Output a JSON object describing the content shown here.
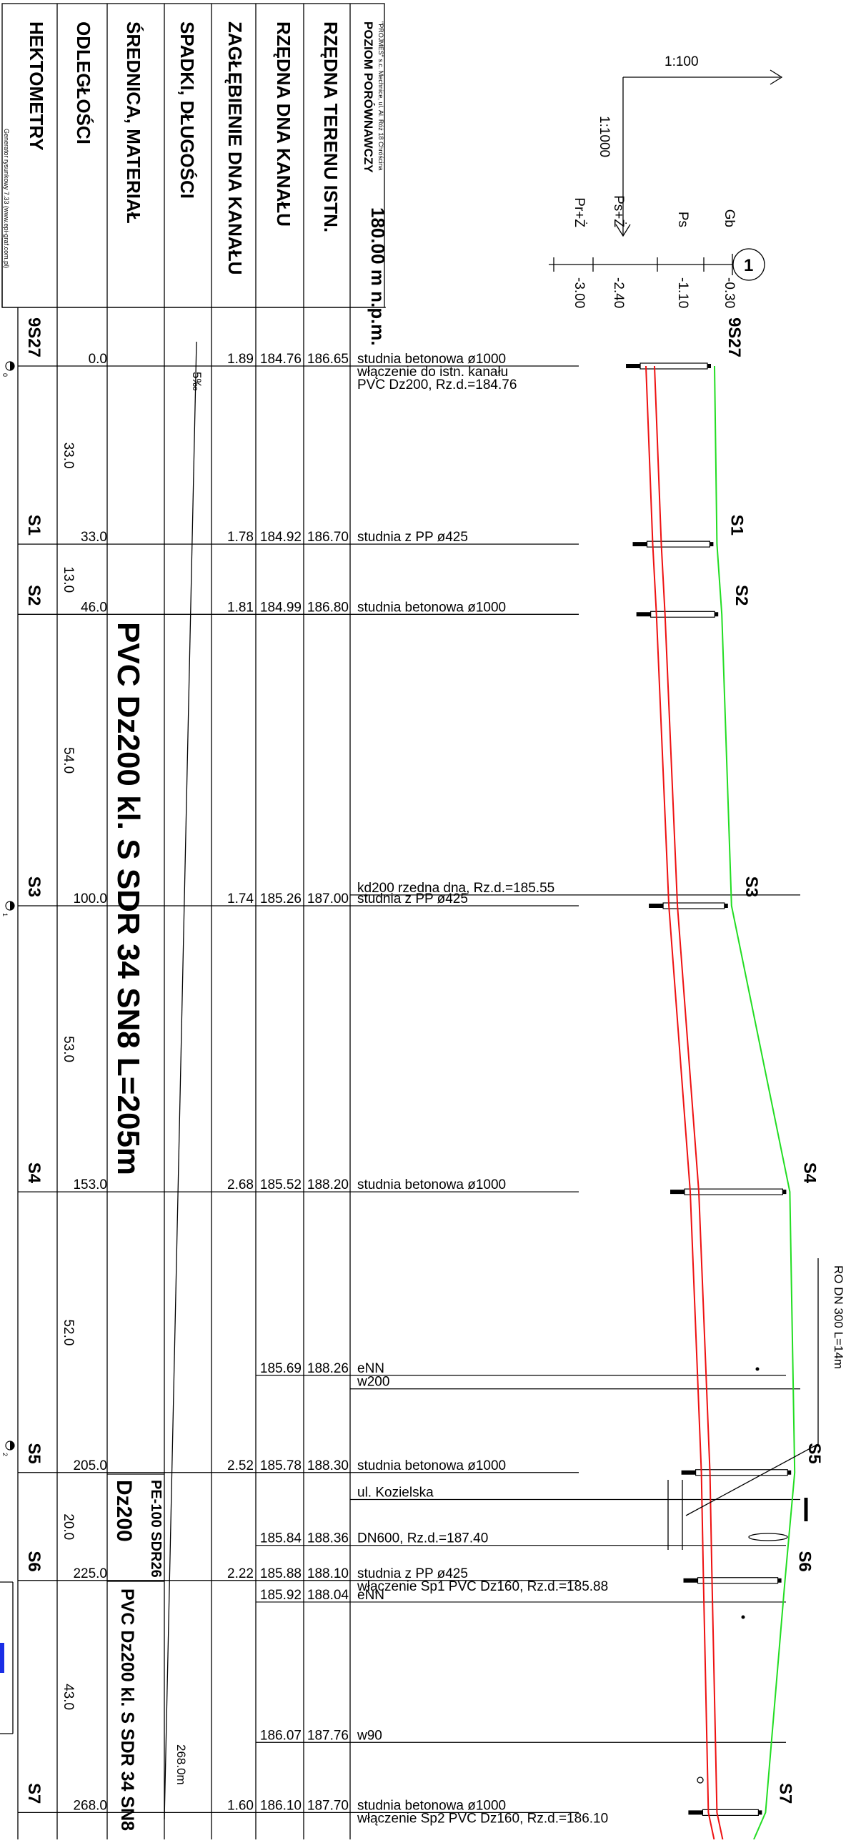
{
  "header": {
    "datum_label": "POZIOM PORÓWNAWCZY",
    "datum_value": "180.00 m n.p.m.",
    "company_line": "\"PROJMES\" s.c. Mechnice, ul. Al. Róż 18 Chróścina",
    "generator": "Generator rysunkowy 7.33 (www.epi-graf.com.pl)"
  },
  "row_headers": [
    "RZĘDNA TERENU ISTN.",
    "RZĘDNA DNA KANAŁU",
    "ZAGŁĘBIENIE DNA KANAŁU",
    "SPADKI, DŁUGOŚCI",
    "ŚREDNICA, MATERIAŁ",
    "ODLEGŁOŚCI",
    "HEKTOMETRY"
  ],
  "scale": {
    "horizontal": "1:100",
    "vertical": "1:1000"
  },
  "legend": {
    "number": "1",
    "items": [
      {
        "code": "Gb",
        "value": "-0.30"
      },
      {
        "code": "Ps",
        "value": "-1.10"
      },
      {
        "code": "Ps+Ż",
        "value": "-2.40"
      },
      {
        "code": "Pr+Ż",
        "value": "-3.00"
      }
    ]
  },
  "stations": [
    {
      "name": "9S27",
      "distance": "0.0",
      "terrain": "186.65",
      "invert": "184.76",
      "depth": "1.89",
      "desc": [
        "studnia betonowa ø1000",
        "włączenie do istn. kanału",
        "PVC Dz200, Rz.d.=184.76"
      ]
    },
    {
      "name": "S1",
      "distance": "33.0",
      "terrain": "186.70",
      "invert": "184.92",
      "depth": "1.78",
      "desc": [
        "studnia z PP ø425"
      ]
    },
    {
      "name": "S2",
      "distance": "46.0",
      "terrain": "186.80",
      "invert": "184.99",
      "depth": "1.81",
      "desc": [
        "studnia betonowa ø1000"
      ]
    },
    {
      "name": "S3",
      "distance": "100.0",
      "terrain": "187.00",
      "invert": "185.26",
      "depth": "1.74",
      "desc": [
        "studnia z PP ø425"
      ]
    },
    {
      "name": "S4",
      "distance": "153.0",
      "terrain": "188.20",
      "invert": "185.52",
      "depth": "2.68",
      "desc": [
        "studnia betonowa ø1000"
      ]
    },
    {
      "name": "S5",
      "distance": "205.0",
      "terrain": "188.30",
      "invert": "185.78",
      "depth": "2.52",
      "desc": [
        "studnia betonowa ø1000"
      ]
    },
    {
      "name": "S6",
      "distance": "225.0",
      "terrain": "188.10",
      "invert": "185.88",
      "depth": "2.22",
      "desc": [
        "studnia z PP ø425",
        "włączenie Sp1 PVC Dz160, Rz.d.=185.88"
      ]
    },
    {
      "name": "S7",
      "distance": "268.0",
      "terrain": "187.70",
      "invert": "186.10",
      "depth": "1.60",
      "desc": [
        "studnia betonowa ø1000",
        "włączenie Sp2 PVC Dz160, Rz.d.=186.10"
      ]
    }
  ],
  "segments": [
    "33.0",
    "13.0",
    "54.0",
    "53.0",
    "52.0",
    "20.0",
    "43.0"
  ],
  "crossings": [
    {
      "terrain": "",
      "invert": "",
      "text": "kd200 rzedna dna, Rz.d.=185.55"
    },
    {
      "terrain": "188.26",
      "invert": "185.69",
      "text": "eNN"
    },
    {
      "terrain": "",
      "invert": "",
      "text": "w200"
    },
    {
      "terrain": "",
      "invert": "",
      "text": "ul. Kozielska"
    },
    {
      "terrain": "188.36",
      "invert": "185.84",
      "text": "DN600, Rz.d.=187.40"
    },
    {
      "terrain": "188.04",
      "invert": "185.92",
      "text": "eNN"
    },
    {
      "terrain": "187.76",
      "invert": "186.07",
      "text": "w90"
    }
  ],
  "slope": {
    "label": "5‰",
    "length": "268.0m"
  },
  "materials": {
    "main": "PVC Dz200 kl. S SDR 34 SN8 L=205m",
    "pe_line1": "PE-100 SDR26",
    "pe_line2": "Dz200",
    "end": "PVC Dz200 kl. S SDR 34 SN8"
  },
  "pipe_note": "RO DN 300 L=14m",
  "hectometers": [
    "0",
    "1",
    "2"
  ],
  "colors": {
    "terrain_line": "#22dd22",
    "pipe_line": "#ee1111",
    "ink": "#000000",
    "accent_blue": "#1a2ee6"
  }
}
